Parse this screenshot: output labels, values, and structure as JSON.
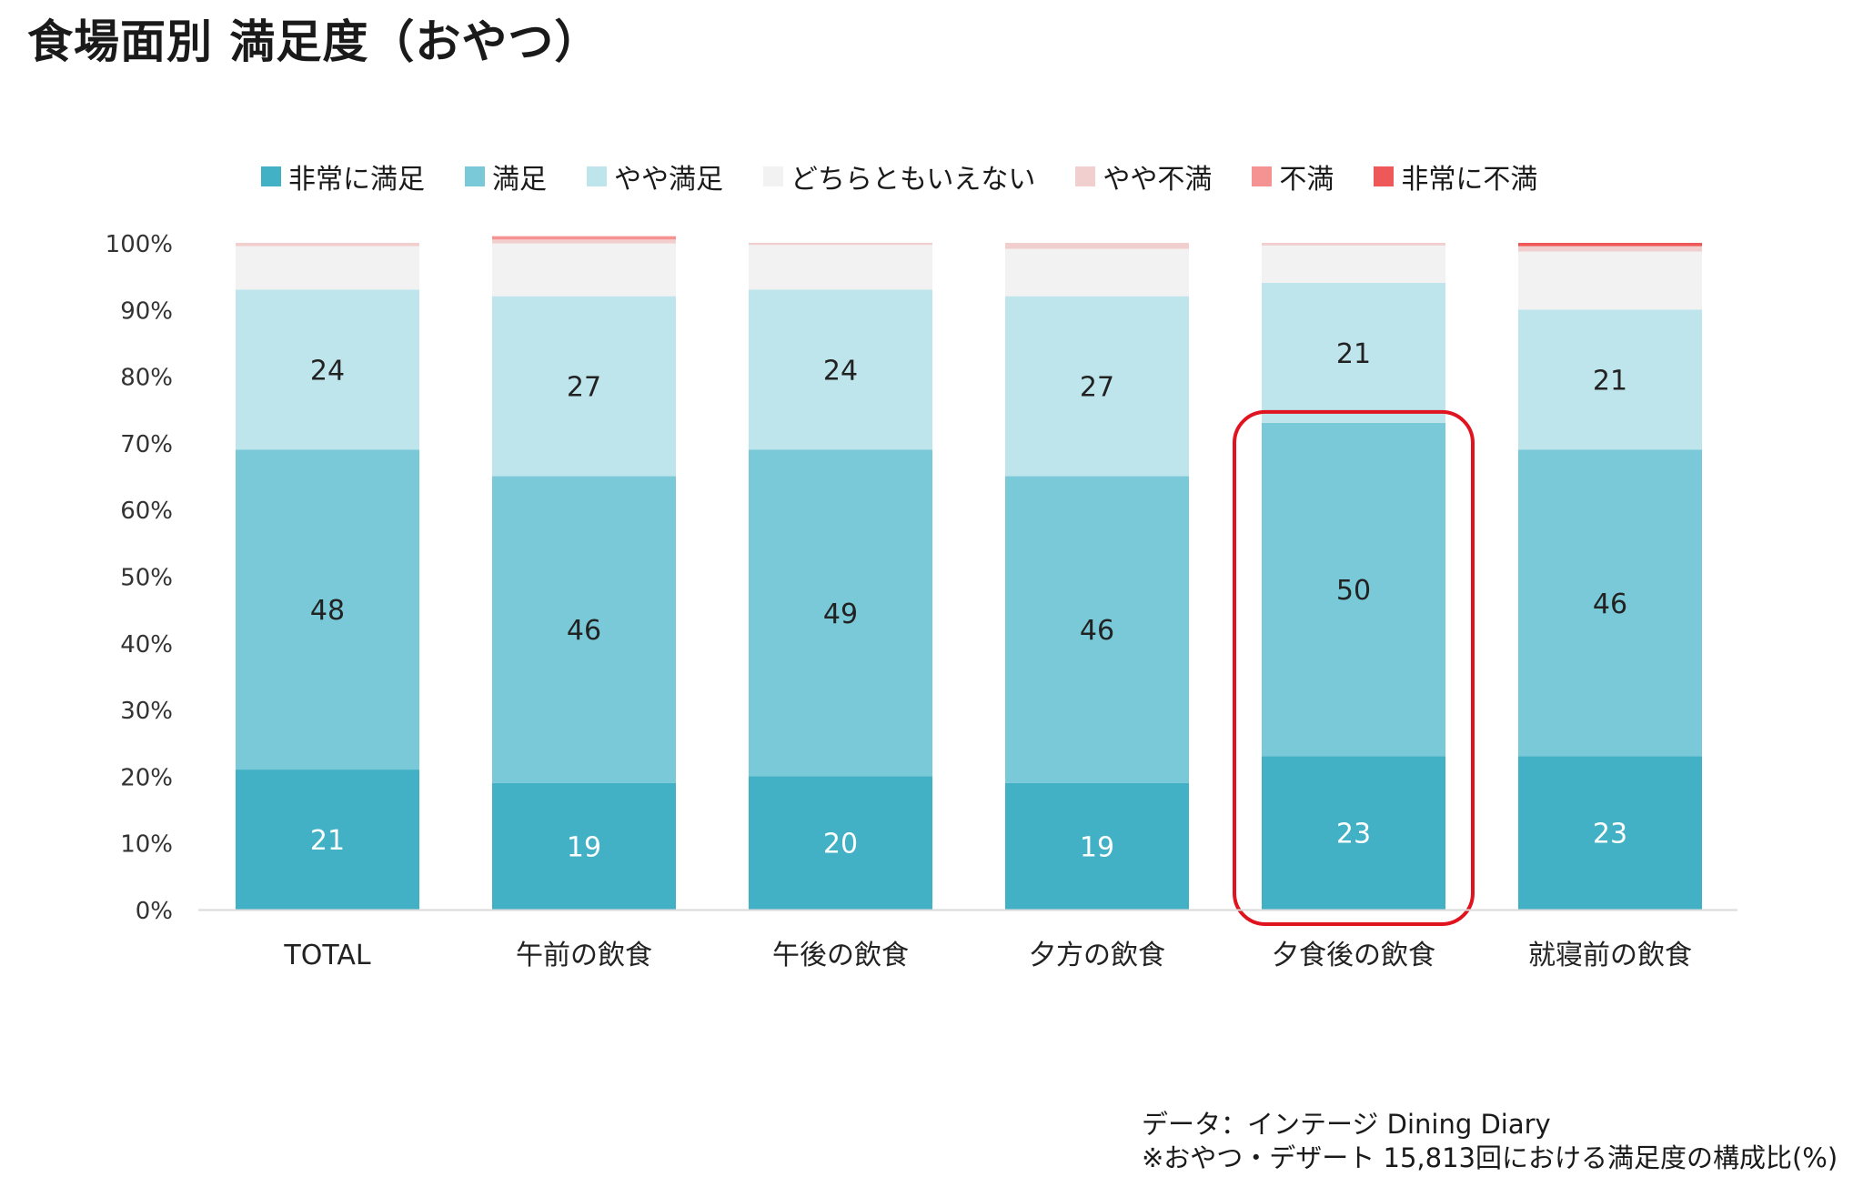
{
  "page": {
    "title": "食場面別 満足度（おやつ）"
  },
  "chart_data": {
    "type": "bar",
    "stacked": true,
    "categories": [
      "TOTAL",
      "午前の飲食",
      "午後の飲食",
      "夕方の飲食",
      "夕食後の飲食",
      "就寝前の飲食"
    ],
    "series": [
      {
        "name": "非常に満足",
        "color": "#42B1C6",
        "label_color": "#ffffff",
        "values": [
          21,
          19,
          20,
          19,
          23,
          23
        ],
        "show_labels": true
      },
      {
        "name": "満足",
        "color": "#79C9D8",
        "label_color": "#222222",
        "values": [
          48,
          46,
          49,
          46,
          50,
          46
        ],
        "show_labels": true
      },
      {
        "name": "やや満足",
        "color": "#BEE4EC",
        "label_color": "#222222",
        "values": [
          24,
          27,
          24,
          27,
          21,
          21
        ],
        "show_labels": true
      },
      {
        "name": "どちらともいえない",
        "color": "#F2F2F2",
        "label_color": "#222222",
        "values": [
          6.5,
          7.9,
          6.7,
          7.1,
          5.6,
          8.7
        ],
        "show_labels": false
      },
      {
        "name": "やや不満",
        "color": "#F2CFCF",
        "label_color": "#222222",
        "values": [
          0.5,
          0.6,
          0.3,
          0.9,
          0.4,
          0.8
        ],
        "show_labels": false
      },
      {
        "name": "不満",
        "color": "#F59393",
        "label_color": "#222222",
        "values": [
          0,
          0.5,
          0,
          0,
          0,
          0
        ],
        "show_labels": false
      },
      {
        "name": "非常に不満",
        "color": "#EE5858",
        "label_color": "#222222",
        "values": [
          0,
          0,
          0,
          0,
          0,
          0.5
        ],
        "show_labels": false
      }
    ],
    "y_ticks": [
      "0%",
      "10%",
      "20%",
      "30%",
      "40%",
      "50%",
      "60%",
      "70%",
      "80%",
      "90%",
      "100%"
    ],
    "ylim": [
      0,
      100
    ],
    "highlight_category": "夕食後の飲食",
    "highlight_color": "#E0141E",
    "legend_position": "top",
    "grid": false
  },
  "source": {
    "line1": "データ：インテージ Dining Diary",
    "line2": "※おやつ・デザート 15,813回における満足度の構成比(%)"
  }
}
